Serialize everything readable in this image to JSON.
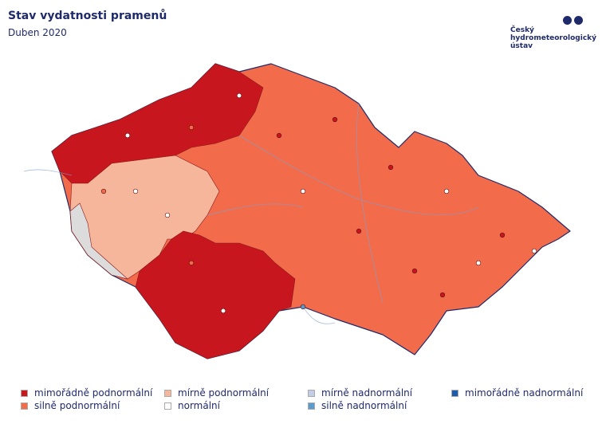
{
  "header": {
    "title": "Stav vydatnosti pramenů",
    "subtitle": "Duben 2020"
  },
  "logo": {
    "lines": [
      "Český",
      "hydrometeorologický",
      "ústav"
    ]
  },
  "legend": {
    "items": [
      {
        "label": "mimořádně podnormální",
        "color": "#c8161e"
      },
      {
        "label": "silně podnormální",
        "color": "#f26b4b"
      },
      {
        "label": "mírně podnormální",
        "color": "#f6b69c"
      },
      {
        "label": "normální",
        "color": "#ffffff"
      },
      {
        "label": "mírně nadnormální",
        "color": "#c4cde6"
      },
      {
        "label": "silně nadnormální",
        "color": "#5b9ccf"
      },
      {
        "label": "mimořádně nadnormální",
        "color": "#1c5ca8"
      }
    ]
  }
}
